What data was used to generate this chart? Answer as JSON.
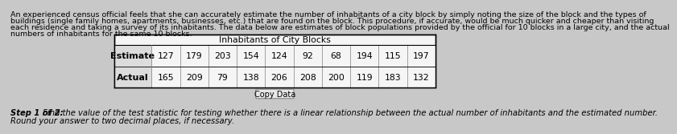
{
  "intro_text_lines": [
    "An experienced census official feels that she can accurately estimate the number of inhabitants of a city block by simply noting the size of the block and the types of",
    "buildings (single family homes, apartments, businesses, etc.) that are found on the block. This procedure, if accurate, would be much quicker and cheaper than visiting",
    "each residence and taking a survey of its inhabitants. The data below are estimates of block populations provided by the official for 10 blocks in a large city, and the actual",
    "numbers of inhabitants for the same 10 blocks."
  ],
  "table_title": "Inhabitants of City Blocks",
  "row_labels": [
    "Estimate",
    "Actual"
  ],
  "estimate_values": [
    "127",
    "179",
    "203",
    "154",
    "124",
    "92",
    "68",
    "194",
    "115",
    "197"
  ],
  "actual_values": [
    "165",
    "209",
    "79",
    "138",
    "206",
    "208",
    "200",
    "119",
    "183",
    "132"
  ],
  "copy_button": "Copy Data",
  "step_text_line1": "Step 1 of 2:  Find the value of the test statistic for testing whether there is a linear relationship between the actual number of inhabitants and the estimated number.",
  "step_text_line2": "Round your answer to two decimal places, if necessary.",
  "bg_color": "#c8c8c8",
  "table_bg": "#f5f5f5",
  "cell_bg": "#f5f5f5",
  "btn_bg": "#e8e8e8",
  "intro_fontsize": 6.8,
  "step_fontsize": 7.2,
  "table_fontsize": 7.8,
  "label_fontsize": 8.0
}
